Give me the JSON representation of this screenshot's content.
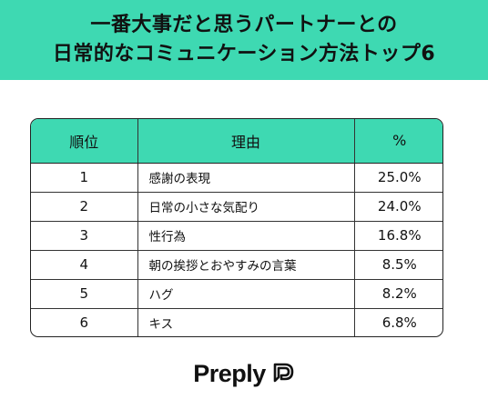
{
  "title": {
    "line1": "一番大事だと思うパートナーとの",
    "line2": "日常的なコミュニケーション方法トップ6"
  },
  "chart_data": {
    "type": "table",
    "columns": [
      "順位",
      "理由",
      "%"
    ],
    "rows": [
      {
        "rank": "1",
        "reason": "感謝の表現",
        "percent": "25.0%"
      },
      {
        "rank": "2",
        "reason": "日常の小さな気配り",
        "percent": "24.0%"
      },
      {
        "rank": "3",
        "reason": "性行為",
        "percent": "16.8%"
      },
      {
        "rank": "4",
        "reason": "朝の挨拶とおやすみの言葉",
        "percent": "8.5%"
      },
      {
        "rank": "5",
        "reason": "ハグ",
        "percent": "8.2%"
      },
      {
        "rank": "6",
        "reason": "キス",
        "percent": "6.8%"
      }
    ]
  },
  "brand": {
    "name": "Preply",
    "icon": "preply-logo-icon"
  },
  "colors": {
    "accent": "#3ed9b2",
    "text": "#111111",
    "border": "#222222"
  }
}
